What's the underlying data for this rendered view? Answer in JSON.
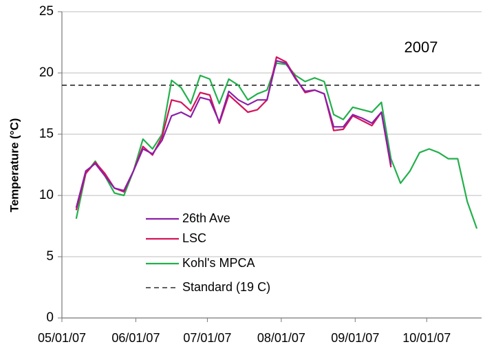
{
  "chart_data": {
    "type": "line",
    "y_label": "Temperature (°C)",
    "annotation": "2007",
    "x": [
      "2007-05-07",
      "2007-05-11",
      "2007-05-15",
      "2007-05-19",
      "2007-05-23",
      "2007-05-27",
      "2007-05-31",
      "2007-06-04",
      "2007-06-08",
      "2007-06-12",
      "2007-06-16",
      "2007-06-20",
      "2007-06-24",
      "2007-06-28",
      "2007-07-02",
      "2007-07-06",
      "2007-07-10",
      "2007-07-14",
      "2007-07-18",
      "2007-07-22",
      "2007-07-26",
      "2007-07-30",
      "2007-08-03",
      "2007-08-07",
      "2007-08-11",
      "2007-08-15",
      "2007-08-19",
      "2007-08-23",
      "2007-08-27",
      "2007-08-31",
      "2007-09-04",
      "2007-09-08",
      "2007-09-12",
      "2007-09-16",
      "2007-09-20",
      "2007-09-24",
      "2007-09-28",
      "2007-10-02",
      "2007-10-06",
      "2007-10-10",
      "2007-10-14",
      "2007-10-18",
      "2007-10-22"
    ],
    "series": [
      {
        "name": "26th Ave",
        "color": "#8b1fa8",
        "values": [
          9.0,
          12.0,
          12.6,
          11.6,
          10.6,
          10.4,
          12.0,
          13.8,
          13.4,
          14.5,
          16.5,
          16.8,
          16.4,
          18.0,
          17.8,
          16.0,
          18.5,
          17.8,
          17.4,
          17.8,
          17.8,
          21.0,
          20.8,
          19.5,
          18.5,
          18.6,
          18.3,
          15.6,
          15.6,
          16.6,
          16.3,
          15.9,
          16.8,
          12.5,
          null,
          null,
          null,
          null,
          null,
          null,
          null,
          null,
          null
        ]
      },
      {
        "name": "LSC",
        "color": "#d4145a",
        "values": [
          8.8,
          11.8,
          12.7,
          11.8,
          10.6,
          10.3,
          12.0,
          14.0,
          13.3,
          14.8,
          17.8,
          17.6,
          16.9,
          18.4,
          18.2,
          15.9,
          18.2,
          17.5,
          16.8,
          17.0,
          17.8,
          21.3,
          20.9,
          19.6,
          18.4,
          18.6,
          18.3,
          15.3,
          15.4,
          16.5,
          16.1,
          15.7,
          16.8,
          12.3,
          null,
          null,
          null,
          null,
          null,
          null,
          null,
          null,
          null
        ]
      },
      {
        "name": "Kohl's MPCA",
        "color": "#22b04b",
        "values": [
          8.1,
          11.8,
          12.8,
          11.6,
          10.2,
          10.0,
          12.0,
          14.6,
          13.8,
          15.0,
          19.4,
          18.8,
          17.5,
          19.8,
          19.5,
          17.5,
          19.5,
          19.0,
          17.8,
          18.3,
          18.6,
          20.8,
          20.7,
          19.8,
          19.3,
          19.6,
          19.3,
          16.6,
          16.2,
          17.2,
          17.0,
          16.8,
          17.6,
          13.0,
          11.0,
          12.0,
          13.5,
          13.8,
          13.5,
          13.0,
          13.0,
          9.5,
          7.3
        ]
      }
    ],
    "reference_line": {
      "name": "Standard (19 C)",
      "value": 19,
      "color": "#000000",
      "dashed": true
    },
    "xlim": [
      "2007-05-01",
      "2007-10-24"
    ],
    "xticks": [
      {
        "value": "2007-05-01",
        "label": "05/01/07"
      },
      {
        "value": "2007-06-01",
        "label": "06/01/07"
      },
      {
        "value": "2007-07-01",
        "label": "07/01/07"
      },
      {
        "value": "2007-08-01",
        "label": "08/01/07"
      },
      {
        "value": "2007-09-01",
        "label": "09/01/07"
      },
      {
        "value": "2007-10-01",
        "label": "10/01/07"
      }
    ],
    "ylim": [
      0,
      25
    ],
    "yticks": [
      0,
      5,
      10,
      15,
      20,
      25
    ],
    "grid": true
  }
}
